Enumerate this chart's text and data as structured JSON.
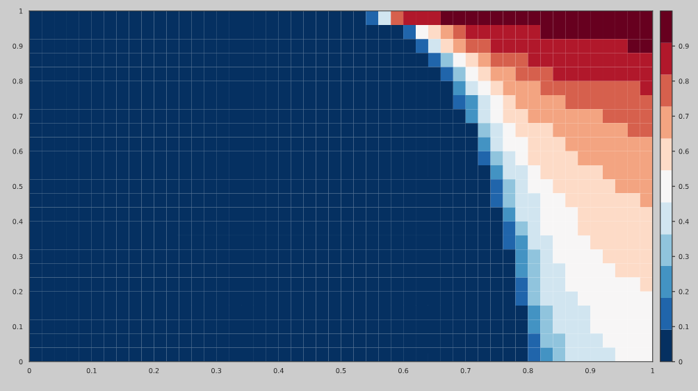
{
  "chart_data": {
    "type": "heatmap",
    "xlim": [
      0,
      1
    ],
    "ylim": [
      0,
      1
    ],
    "xticks": [
      0,
      0.1,
      0.2,
      0.3,
      0.4,
      0.5,
      0.6,
      0.7,
      0.8,
      0.9,
      1
    ],
    "yticks": [
      0,
      0.1,
      0.2,
      0.3,
      0.4,
      0.5,
      0.6,
      0.7,
      0.8,
      0.9,
      1
    ],
    "clim": [
      0,
      1
    ],
    "cticks": [
      0,
      0.1,
      0.2,
      0.3,
      0.4,
      0.5,
      0.6,
      0.7,
      0.8,
      0.9
    ],
    "cells": [
      [
        0.05,
        0.05,
        0.05,
        0.05,
        0.05,
        0.05,
        0.05,
        0.05,
        0.05,
        0.05,
        0.05,
        0.05,
        0.05,
        0.05,
        0.05,
        0.05,
        0.05,
        0.05,
        0.05,
        0.05,
        0.05,
        0.05,
        0.05,
        0.05,
        0.05,
        0.05,
        0.05,
        0.14,
        0.41,
        0.77,
        0.86,
        0.86,
        0.86,
        0.95,
        0.95,
        0.95,
        0.95,
        0.95,
        0.95,
        0.95,
        0.95,
        0.95,
        0.95,
        0.95,
        0.95,
        0.95,
        0.95,
        0.95,
        0.95,
        0.95
      ],
      [
        0.05,
        0.05,
        0.05,
        0.05,
        0.05,
        0.05,
        0.05,
        0.05,
        0.05,
        0.05,
        0.05,
        0.05,
        0.05,
        0.05,
        0.05,
        0.05,
        0.05,
        0.05,
        0.05,
        0.05,
        0.05,
        0.05,
        0.05,
        0.05,
        0.05,
        0.05,
        0.05,
        0.05,
        0.05,
        0.05,
        0.14,
        0.5,
        0.59,
        0.68,
        0.77,
        0.86,
        0.86,
        0.86,
        0.86,
        0.86,
        0.86,
        0.95,
        0.95,
        0.95,
        0.95,
        0.95,
        0.95,
        0.95,
        0.95,
        0.95
      ],
      [
        0.05,
        0.05,
        0.05,
        0.05,
        0.05,
        0.05,
        0.05,
        0.05,
        0.05,
        0.05,
        0.05,
        0.05,
        0.05,
        0.05,
        0.05,
        0.05,
        0.05,
        0.05,
        0.05,
        0.05,
        0.05,
        0.05,
        0.05,
        0.05,
        0.05,
        0.05,
        0.05,
        0.05,
        0.05,
        0.05,
        0.05,
        0.14,
        0.41,
        0.59,
        0.68,
        0.77,
        0.77,
        0.86,
        0.86,
        0.86,
        0.86,
        0.86,
        0.86,
        0.86,
        0.86,
        0.86,
        0.86,
        0.86,
        0.95,
        0.95
      ],
      [
        0.05,
        0.05,
        0.05,
        0.05,
        0.05,
        0.05,
        0.05,
        0.05,
        0.05,
        0.05,
        0.05,
        0.05,
        0.05,
        0.05,
        0.05,
        0.05,
        0.05,
        0.05,
        0.05,
        0.05,
        0.05,
        0.05,
        0.05,
        0.05,
        0.05,
        0.05,
        0.05,
        0.05,
        0.05,
        0.05,
        0.05,
        0.05,
        0.14,
        0.32,
        0.5,
        0.59,
        0.68,
        0.77,
        0.77,
        0.77,
        0.86,
        0.86,
        0.86,
        0.86,
        0.86,
        0.86,
        0.86,
        0.86,
        0.86,
        0.86
      ],
      [
        0.05,
        0.05,
        0.05,
        0.05,
        0.05,
        0.05,
        0.05,
        0.05,
        0.05,
        0.05,
        0.05,
        0.05,
        0.05,
        0.05,
        0.05,
        0.05,
        0.05,
        0.05,
        0.05,
        0.05,
        0.05,
        0.05,
        0.05,
        0.05,
        0.05,
        0.05,
        0.05,
        0.05,
        0.05,
        0.05,
        0.05,
        0.05,
        0.05,
        0.14,
        0.32,
        0.5,
        0.59,
        0.68,
        0.68,
        0.77,
        0.77,
        0.77,
        0.86,
        0.86,
        0.86,
        0.86,
        0.86,
        0.86,
        0.86,
        0.86
      ],
      [
        0.05,
        0.05,
        0.05,
        0.05,
        0.05,
        0.05,
        0.05,
        0.05,
        0.05,
        0.05,
        0.05,
        0.05,
        0.05,
        0.05,
        0.05,
        0.05,
        0.05,
        0.05,
        0.05,
        0.05,
        0.05,
        0.05,
        0.05,
        0.05,
        0.05,
        0.05,
        0.05,
        0.05,
        0.05,
        0.05,
        0.05,
        0.05,
        0.05,
        0.05,
        0.23,
        0.41,
        0.5,
        0.59,
        0.68,
        0.68,
        0.68,
        0.77,
        0.77,
        0.77,
        0.77,
        0.77,
        0.77,
        0.77,
        0.77,
        0.86
      ],
      [
        0.05,
        0.05,
        0.05,
        0.05,
        0.05,
        0.05,
        0.05,
        0.05,
        0.05,
        0.05,
        0.05,
        0.05,
        0.05,
        0.05,
        0.05,
        0.05,
        0.05,
        0.05,
        0.05,
        0.05,
        0.05,
        0.05,
        0.05,
        0.05,
        0.05,
        0.05,
        0.05,
        0.05,
        0.05,
        0.05,
        0.05,
        0.05,
        0.05,
        0.05,
        0.14,
        0.23,
        0.41,
        0.5,
        0.59,
        0.68,
        0.68,
        0.68,
        0.68,
        0.77,
        0.77,
        0.77,
        0.77,
        0.77,
        0.77,
        0.77
      ],
      [
        0.05,
        0.05,
        0.05,
        0.05,
        0.05,
        0.05,
        0.05,
        0.05,
        0.05,
        0.05,
        0.05,
        0.05,
        0.05,
        0.05,
        0.05,
        0.05,
        0.05,
        0.05,
        0.05,
        0.05,
        0.05,
        0.05,
        0.05,
        0.05,
        0.05,
        0.05,
        0.05,
        0.05,
        0.05,
        0.05,
        0.05,
        0.05,
        0.05,
        0.05,
        0.05,
        0.23,
        0.41,
        0.5,
        0.59,
        0.59,
        0.68,
        0.68,
        0.68,
        0.68,
        0.68,
        0.68,
        0.77,
        0.77,
        0.77,
        0.77
      ],
      [
        0.05,
        0.05,
        0.05,
        0.05,
        0.05,
        0.05,
        0.05,
        0.05,
        0.05,
        0.05,
        0.05,
        0.05,
        0.05,
        0.05,
        0.05,
        0.05,
        0.05,
        0.05,
        0.05,
        0.05,
        0.05,
        0.05,
        0.05,
        0.05,
        0.05,
        0.05,
        0.05,
        0.05,
        0.05,
        0.05,
        0.05,
        0.05,
        0.05,
        0.05,
        0.05,
        0.05,
        0.32,
        0.41,
        0.5,
        0.59,
        0.59,
        0.59,
        0.68,
        0.68,
        0.68,
        0.68,
        0.68,
        0.68,
        0.77,
        0.77
      ],
      [
        0.05,
        0.05,
        0.05,
        0.05,
        0.05,
        0.05,
        0.05,
        0.05,
        0.05,
        0.05,
        0.05,
        0.05,
        0.05,
        0.05,
        0.05,
        0.05,
        0.05,
        0.05,
        0.05,
        0.05,
        0.05,
        0.05,
        0.05,
        0.05,
        0.05,
        0.05,
        0.05,
        0.05,
        0.05,
        0.05,
        0.05,
        0.05,
        0.05,
        0.05,
        0.05,
        0.05,
        0.23,
        0.41,
        0.5,
        0.5,
        0.59,
        0.59,
        0.59,
        0.68,
        0.68,
        0.68,
        0.68,
        0.68,
        0.68,
        0.68
      ],
      [
        0.05,
        0.05,
        0.05,
        0.05,
        0.05,
        0.05,
        0.05,
        0.05,
        0.05,
        0.05,
        0.05,
        0.05,
        0.05,
        0.05,
        0.05,
        0.05,
        0.05,
        0.05,
        0.05,
        0.05,
        0.05,
        0.05,
        0.05,
        0.05,
        0.05,
        0.05,
        0.05,
        0.05,
        0.05,
        0.05,
        0.05,
        0.05,
        0.05,
        0.05,
        0.05,
        0.05,
        0.14,
        0.32,
        0.41,
        0.5,
        0.59,
        0.59,
        0.59,
        0.59,
        0.68,
        0.68,
        0.68,
        0.68,
        0.68,
        0.68
      ],
      [
        0.05,
        0.05,
        0.05,
        0.05,
        0.05,
        0.05,
        0.05,
        0.05,
        0.05,
        0.05,
        0.05,
        0.05,
        0.05,
        0.05,
        0.05,
        0.05,
        0.05,
        0.05,
        0.05,
        0.05,
        0.05,
        0.05,
        0.05,
        0.05,
        0.05,
        0.05,
        0.05,
        0.05,
        0.05,
        0.05,
        0.05,
        0.05,
        0.05,
        0.05,
        0.05,
        0.05,
        0.05,
        0.23,
        0.41,
        0.41,
        0.5,
        0.59,
        0.59,
        0.59,
        0.59,
        0.59,
        0.68,
        0.68,
        0.68,
        0.68
      ],
      [
        0.05,
        0.05,
        0.05,
        0.05,
        0.05,
        0.05,
        0.05,
        0.05,
        0.05,
        0.05,
        0.05,
        0.05,
        0.05,
        0.05,
        0.05,
        0.05,
        0.05,
        0.05,
        0.05,
        0.05,
        0.05,
        0.05,
        0.05,
        0.05,
        0.05,
        0.05,
        0.05,
        0.05,
        0.05,
        0.05,
        0.05,
        0.05,
        0.05,
        0.05,
        0.05,
        0.05,
        0.05,
        0.14,
        0.32,
        0.41,
        0.5,
        0.5,
        0.59,
        0.59,
        0.59,
        0.59,
        0.59,
        0.68,
        0.68,
        0.68
      ],
      [
        0.05,
        0.05,
        0.05,
        0.05,
        0.05,
        0.05,
        0.05,
        0.05,
        0.05,
        0.05,
        0.05,
        0.05,
        0.05,
        0.05,
        0.05,
        0.05,
        0.05,
        0.05,
        0.05,
        0.05,
        0.05,
        0.05,
        0.05,
        0.05,
        0.05,
        0.05,
        0.05,
        0.05,
        0.05,
        0.05,
        0.05,
        0.05,
        0.05,
        0.05,
        0.05,
        0.05,
        0.05,
        0.14,
        0.32,
        0.41,
        0.41,
        0.5,
        0.5,
        0.59,
        0.59,
        0.59,
        0.59,
        0.59,
        0.59,
        0.68
      ],
      [
        0.05,
        0.05,
        0.05,
        0.05,
        0.05,
        0.05,
        0.05,
        0.05,
        0.05,
        0.05,
        0.05,
        0.05,
        0.05,
        0.05,
        0.05,
        0.05,
        0.05,
        0.05,
        0.05,
        0.05,
        0.05,
        0.05,
        0.05,
        0.05,
        0.05,
        0.05,
        0.05,
        0.05,
        0.05,
        0.05,
        0.05,
        0.05,
        0.05,
        0.05,
        0.05,
        0.05,
        0.05,
        0.05,
        0.23,
        0.41,
        0.41,
        0.5,
        0.5,
        0.5,
        0.59,
        0.59,
        0.59,
        0.59,
        0.59,
        0.59
      ],
      [
        0.05,
        0.05,
        0.05,
        0.05,
        0.05,
        0.05,
        0.05,
        0.05,
        0.05,
        0.05,
        0.05,
        0.05,
        0.05,
        0.05,
        0.05,
        0.05,
        0.05,
        0.05,
        0.05,
        0.05,
        0.05,
        0.05,
        0.05,
        0.05,
        0.05,
        0.05,
        0.05,
        0.05,
        0.05,
        0.05,
        0.05,
        0.05,
        0.05,
        0.05,
        0.05,
        0.05,
        0.05,
        0.05,
        0.14,
        0.32,
        0.41,
        0.5,
        0.5,
        0.5,
        0.59,
        0.59,
        0.59,
        0.59,
        0.59,
        0.59
      ],
      [
        0.05,
        0.05,
        0.05,
        0.05,
        0.05,
        0.05,
        0.05,
        0.05,
        0.05,
        0.05,
        0.05,
        0.05,
        0.05,
        0.05,
        0.05,
        0.05,
        0.05,
        0.05,
        0.05,
        0.05,
        0.05,
        0.05,
        0.05,
        0.05,
        0.05,
        0.05,
        0.05,
        0.05,
        0.05,
        0.05,
        0.05,
        0.05,
        0.05,
        0.05,
        0.05,
        0.05,
        0.05,
        0.05,
        0.14,
        0.23,
        0.41,
        0.41,
        0.5,
        0.5,
        0.5,
        0.59,
        0.59,
        0.59,
        0.59,
        0.59
      ],
      [
        0.05,
        0.05,
        0.05,
        0.05,
        0.05,
        0.05,
        0.05,
        0.05,
        0.05,
        0.05,
        0.05,
        0.05,
        0.05,
        0.05,
        0.05,
        0.05,
        0.05,
        0.05,
        0.05,
        0.05,
        0.05,
        0.05,
        0.05,
        0.05,
        0.05,
        0.05,
        0.05,
        0.05,
        0.05,
        0.05,
        0.05,
        0.05,
        0.05,
        0.05,
        0.05,
        0.05,
        0.05,
        0.05,
        0.05,
        0.23,
        0.32,
        0.41,
        0.5,
        0.5,
        0.5,
        0.5,
        0.59,
        0.59,
        0.59,
        0.59
      ],
      [
        0.05,
        0.05,
        0.05,
        0.05,
        0.05,
        0.05,
        0.05,
        0.05,
        0.05,
        0.05,
        0.05,
        0.05,
        0.05,
        0.05,
        0.05,
        0.05,
        0.05,
        0.05,
        0.05,
        0.05,
        0.05,
        0.05,
        0.05,
        0.05,
        0.05,
        0.05,
        0.05,
        0.05,
        0.05,
        0.05,
        0.05,
        0.05,
        0.05,
        0.05,
        0.05,
        0.05,
        0.05,
        0.05,
        0.05,
        0.23,
        0.32,
        0.41,
        0.41,
        0.5,
        0.5,
        0.5,
        0.5,
        0.59,
        0.59,
        0.59
      ],
      [
        0.05,
        0.05,
        0.05,
        0.05,
        0.05,
        0.05,
        0.05,
        0.05,
        0.05,
        0.05,
        0.05,
        0.05,
        0.05,
        0.05,
        0.05,
        0.05,
        0.05,
        0.05,
        0.05,
        0.05,
        0.05,
        0.05,
        0.05,
        0.05,
        0.05,
        0.05,
        0.05,
        0.05,
        0.05,
        0.05,
        0.05,
        0.05,
        0.05,
        0.05,
        0.05,
        0.05,
        0.05,
        0.05,
        0.05,
        0.14,
        0.32,
        0.41,
        0.41,
        0.5,
        0.5,
        0.5,
        0.5,
        0.5,
        0.5,
        0.59
      ],
      [
        0.05,
        0.05,
        0.05,
        0.05,
        0.05,
        0.05,
        0.05,
        0.05,
        0.05,
        0.05,
        0.05,
        0.05,
        0.05,
        0.05,
        0.05,
        0.05,
        0.05,
        0.05,
        0.05,
        0.05,
        0.05,
        0.05,
        0.05,
        0.05,
        0.05,
        0.05,
        0.05,
        0.05,
        0.05,
        0.05,
        0.05,
        0.05,
        0.05,
        0.05,
        0.05,
        0.05,
        0.05,
        0.05,
        0.05,
        0.14,
        0.32,
        0.41,
        0.41,
        0.41,
        0.5,
        0.5,
        0.5,
        0.5,
        0.5,
        0.5
      ],
      [
        0.05,
        0.05,
        0.05,
        0.05,
        0.05,
        0.05,
        0.05,
        0.05,
        0.05,
        0.05,
        0.05,
        0.05,
        0.05,
        0.05,
        0.05,
        0.05,
        0.05,
        0.05,
        0.05,
        0.05,
        0.05,
        0.05,
        0.05,
        0.05,
        0.05,
        0.05,
        0.05,
        0.05,
        0.05,
        0.05,
        0.05,
        0.05,
        0.05,
        0.05,
        0.05,
        0.05,
        0.05,
        0.05,
        0.05,
        0.05,
        0.23,
        0.32,
        0.41,
        0.41,
        0.41,
        0.5,
        0.5,
        0.5,
        0.5,
        0.5
      ],
      [
        0.05,
        0.05,
        0.05,
        0.05,
        0.05,
        0.05,
        0.05,
        0.05,
        0.05,
        0.05,
        0.05,
        0.05,
        0.05,
        0.05,
        0.05,
        0.05,
        0.05,
        0.05,
        0.05,
        0.05,
        0.05,
        0.05,
        0.05,
        0.05,
        0.05,
        0.05,
        0.05,
        0.05,
        0.05,
        0.05,
        0.05,
        0.05,
        0.05,
        0.05,
        0.05,
        0.05,
        0.05,
        0.05,
        0.05,
        0.05,
        0.23,
        0.32,
        0.41,
        0.41,
        0.41,
        0.5,
        0.5,
        0.5,
        0.5,
        0.5
      ],
      [
        0.05,
        0.05,
        0.05,
        0.05,
        0.05,
        0.05,
        0.05,
        0.05,
        0.05,
        0.05,
        0.05,
        0.05,
        0.05,
        0.05,
        0.05,
        0.05,
        0.05,
        0.05,
        0.05,
        0.05,
        0.05,
        0.05,
        0.05,
        0.05,
        0.05,
        0.05,
        0.05,
        0.05,
        0.05,
        0.05,
        0.05,
        0.05,
        0.05,
        0.05,
        0.05,
        0.05,
        0.05,
        0.05,
        0.05,
        0.05,
        0.14,
        0.32,
        0.32,
        0.41,
        0.41,
        0.41,
        0.5,
        0.5,
        0.5,
        0.5
      ],
      [
        0.05,
        0.05,
        0.05,
        0.05,
        0.05,
        0.05,
        0.05,
        0.05,
        0.05,
        0.05,
        0.05,
        0.05,
        0.05,
        0.05,
        0.05,
        0.05,
        0.05,
        0.05,
        0.05,
        0.05,
        0.05,
        0.05,
        0.05,
        0.05,
        0.05,
        0.05,
        0.05,
        0.05,
        0.05,
        0.05,
        0.05,
        0.05,
        0.05,
        0.05,
        0.05,
        0.05,
        0.05,
        0.05,
        0.05,
        0.05,
        0.14,
        0.23,
        0.32,
        0.41,
        0.41,
        0.41,
        0.41,
        0.5,
        0.5,
        0.5
      ]
    ]
  }
}
